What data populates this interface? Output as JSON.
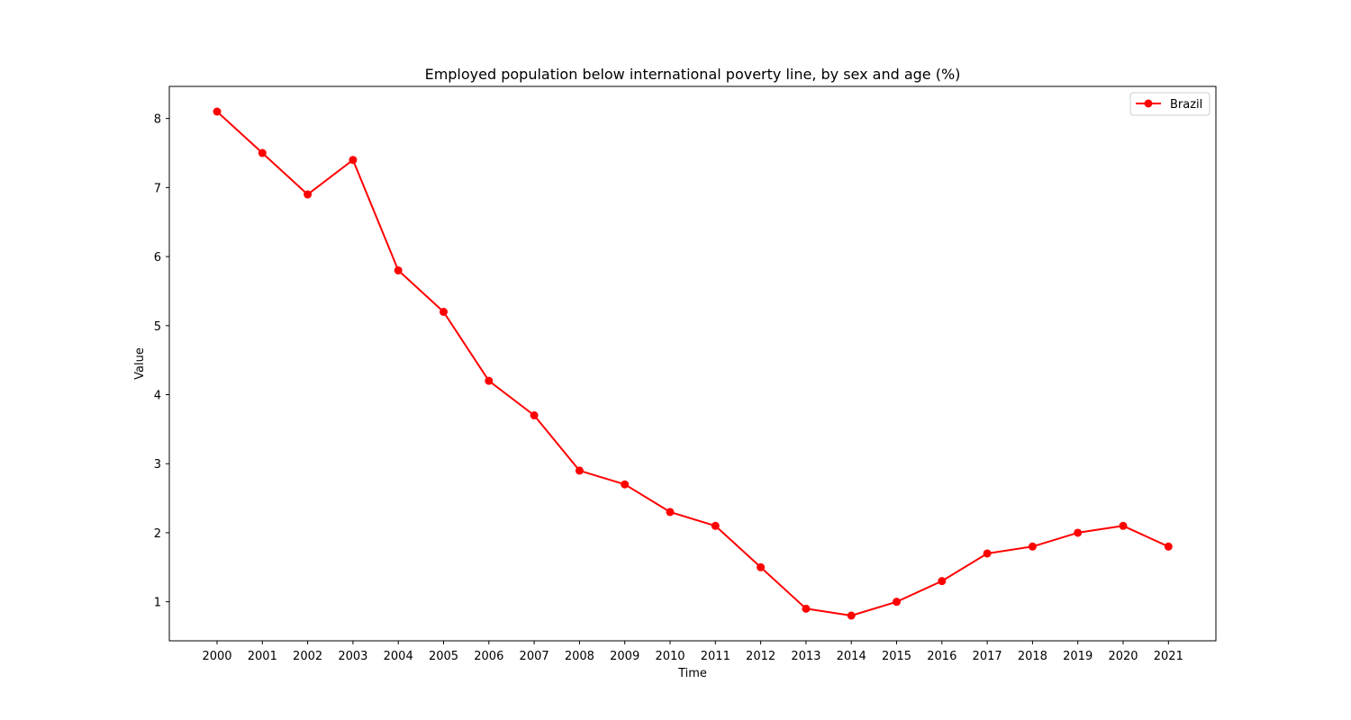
{
  "chart_data": {
    "type": "line",
    "title": "Employed population below international poverty line, by sex and age (%)",
    "xlabel": "Time",
    "ylabel": "Value",
    "categories": [
      "2000",
      "2001",
      "2002",
      "2003",
      "2004",
      "2005",
      "2006",
      "2007",
      "2008",
      "2009",
      "2010",
      "2011",
      "2012",
      "2013",
      "2014",
      "2015",
      "2016",
      "2017",
      "2018",
      "2019",
      "2020",
      "2021"
    ],
    "series": [
      {
        "name": "Brazil",
        "color": "#ff0000",
        "marker": "circle",
        "values": [
          8.1,
          7.5,
          6.9,
          7.4,
          5.8,
          5.2,
          4.2,
          3.7,
          2.9,
          2.7,
          2.3,
          2.1,
          1.5,
          0.9,
          0.8,
          1.0,
          1.3,
          1.7,
          1.8,
          2.0,
          2.1,
          1.8
        ]
      }
    ],
    "yticks": [
      1,
      2,
      3,
      4,
      5,
      6,
      7,
      8
    ],
    "ylim": [
      0.435,
      8.465
    ],
    "grid": false,
    "legend": "top-right"
  }
}
